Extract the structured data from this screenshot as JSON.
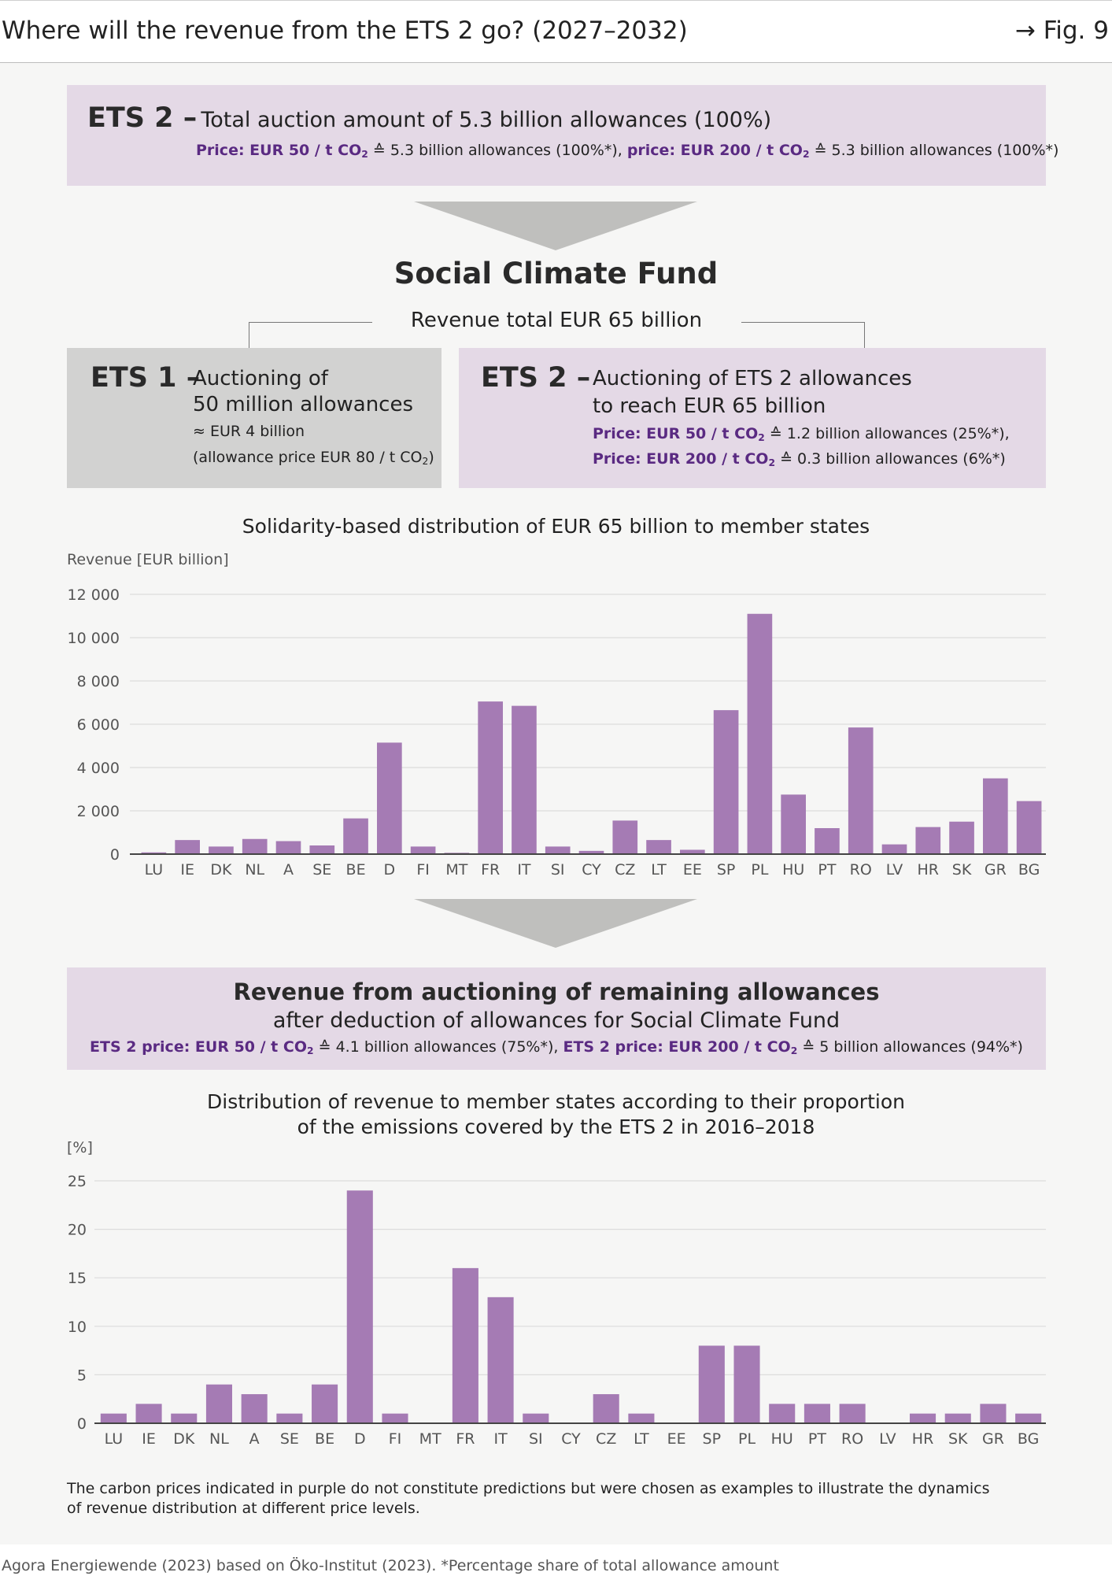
{
  "header": {
    "title": "Where will the revenue from the ETS 2 go?  (2027–2032)",
    "fig": "→ Fig. 9"
  },
  "top_box": {
    "ets_label": "ETS 2 –",
    "lead": "Total auction amount of 5.3 billion allowances (100%)",
    "price1_label": "Price: EUR 50 / t CO",
    "price1_sub": "2",
    "price1_value": " ≙ 5.3 billion allowances (100%*), ",
    "price2_label": "price: EUR 200 / t CO",
    "price2_sub": "2",
    "price2_value": " ≙ 5.3 billion allowances (100%*)"
  },
  "scf": {
    "title": "Social Climate Fund",
    "revenue": "Revenue total EUR 65 billion"
  },
  "ets1_box": {
    "ets_label": "ETS 1 –",
    "line1": "Auctioning of",
    "line2": "50 million allowances",
    "line3": "≈ EUR 4 billion",
    "line4": "(allowance price EUR 80 / t CO",
    "line4_sub": "2",
    "line4_end": ")"
  },
  "ets2_box": {
    "ets_label": "ETS 2 –",
    "line1": "Auctioning of ETS 2 allowances",
    "line2": "to reach EUR 65 billion",
    "price1_label": "Price: EUR 50 / t CO",
    "price1_sub": "2",
    "price1_value": " ≙ 1.2 billion allowances (25%*),",
    "price2_label": "Price: EUR 200 / t CO",
    "price2_sub": "2",
    "price2_value": " ≙ 0.3 billion allowances (6%*)"
  },
  "bottom_box": {
    "line1": "Revenue from auctioning of remaining allowances",
    "line2": "after deduction of allowances for Social Climate Fund",
    "price1_label": "ETS 2 price: EUR 50 / t CO",
    "price1_sub": "2",
    "price1_value": " ≙ 4.1 billion allowances (75%*), ",
    "price2_label": "ETS 2 price: EUR 200 / t CO",
    "price2_sub": "2",
    "price2_value": " ≙ 5 billion allowances (94%*)"
  },
  "colors": {
    "bar": "#a57bb4",
    "accent": "#5a2a82",
    "box_purple": "#e4d9e6",
    "box_grey": "#d2d2d1"
  },
  "chart_data": [
    {
      "type": "bar",
      "title": "Solidarity-based distribution of EUR 65 billion to member states",
      "ylabel": "Revenue [EUR billion]",
      "xlabel": "",
      "ylim": [
        0,
        12000
      ],
      "yticks": [
        0,
        2000,
        4000,
        6000,
        8000,
        10000,
        12000
      ],
      "ytick_labels": [
        "0",
        "2 000",
        "4 000",
        "6 000",
        "8 000",
        "10 000",
        "12 000"
      ],
      "grid": true,
      "categories": [
        "LU",
        "IE",
        "DK",
        "NL",
        "A",
        "SE",
        "BE",
        "D",
        "FI",
        "MT",
        "FR",
        "IT",
        "SI",
        "CY",
        "CZ",
        "LT",
        "EE",
        "SP",
        "PL",
        "HU",
        "PT",
        "RO",
        "LV",
        "HR",
        "SK",
        "GR",
        "BG"
      ],
      "values": [
        80,
        650,
        350,
        700,
        600,
        400,
        1650,
        5150,
        350,
        60,
        7050,
        6850,
        350,
        150,
        1550,
        650,
        200,
        6650,
        11100,
        2750,
        1200,
        5850,
        450,
        1250,
        1500,
        3500,
        2450
      ]
    },
    {
      "type": "bar",
      "title": "Distribution of revenue to member states according to their proportion of the emissions covered by the ETS 2 in 2016–2018",
      "title_lines": [
        "Distribution of revenue to member states according to their proportion",
        "of the emissions covered by the ETS 2 in 2016–2018"
      ],
      "ylabel": "[%]",
      "xlabel": "",
      "ylim": [
        0,
        25
      ],
      "yticks": [
        0,
        5,
        10,
        15,
        20,
        25
      ],
      "ytick_labels": [
        "0",
        "5",
        "10",
        "15",
        "20",
        "25"
      ],
      "grid": true,
      "categories": [
        "LU",
        "IE",
        "DK",
        "NL",
        "A",
        "SE",
        "BE",
        "D",
        "FI",
        "MT",
        "FR",
        "IT",
        "SI",
        "CY",
        "CZ",
        "LT",
        "EE",
        "SP",
        "PL",
        "HU",
        "PT",
        "RO",
        "LV",
        "HR",
        "SK",
        "GR",
        "BG"
      ],
      "values": [
        1,
        2,
        1,
        4,
        3,
        1,
        4,
        24,
        1,
        0,
        16,
        13,
        1,
        0,
        3,
        1,
        0,
        8,
        8,
        2,
        2,
        2,
        0,
        1,
        1,
        2,
        1
      ]
    }
  ],
  "note": {
    "line1": "The carbon prices indicated in purple do not constitute predictions but were chosen as examples to illustrate the dynamics",
    "line2": "of revenue distribution at different price levels."
  },
  "footer": "Agora Energiewende (2023) based on Öko-Institut (2023). *Percentage share of total allowance amount"
}
